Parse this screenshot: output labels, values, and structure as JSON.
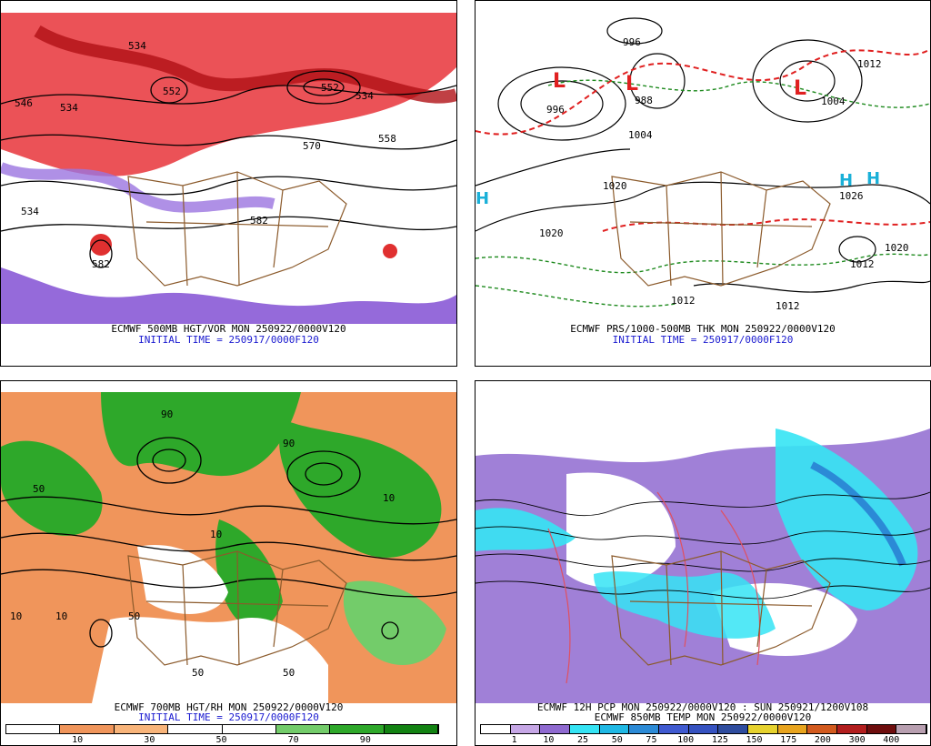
{
  "panels": {
    "p1": {
      "line1": "ECMWF 500MB HGT/VOR MON 250922/0000V120",
      "line2": "INITIAL TIME = 250917/0000F120",
      "labels": [
        "534",
        "546",
        "534",
        "552",
        "534",
        "552",
        "570",
        "582",
        "582",
        "534",
        "558"
      ]
    },
    "p2": {
      "line1": "ECMWF PRS/1000-500MB THK MON 250922/0000V120",
      "line2": "INITIAL TIME = 250917/0000F120",
      "labels": [
        "996",
        "996",
        "988",
        "1004",
        "1004",
        "1012",
        "1020",
        "1026",
        "1020",
        "1012",
        "1012",
        "1020",
        "1012"
      ]
    },
    "p3": {
      "line1": "ECMWF 700MB HGT/RH MON 250922/0000V120",
      "line2": "INITIAL TIME = 250917/0000F120",
      "labels": [
        "10",
        "50",
        "10",
        "50",
        "10",
        "50",
        "90",
        "10",
        "90",
        "50"
      ]
    },
    "p4": {
      "line1": "ECMWF 12H PCP MON 250922/0000V120 : SUN 250921/1200V108",
      "line2": "ECMWF 850MB TEMP MON 250922/0000V120"
    }
  },
  "colorbar_rh": {
    "colors": [
      "#ffffff",
      "#f0955b",
      "#f8b47a",
      "#ffffff",
      "#ffffff",
      "#73cc6a",
      "#2ea82a",
      "#128212"
    ],
    "ticks": [
      "10",
      "30",
      "50",
      "70",
      "90"
    ]
  },
  "colorbar_pcp": {
    "colors": [
      "#ffffff",
      "#c6a7e6",
      "#8f6ad0",
      "#35e4f4",
      "#1fb8e4",
      "#2b8ad6",
      "#3f5ad0",
      "#3552c0",
      "#2e4c9e",
      "#e6d22e",
      "#e8a41e",
      "#d25a1e",
      "#b21e1e",
      "#6e0e0e",
      "#b89fb0"
    ],
    "ticks": [
      "1",
      "10",
      "25",
      "50",
      "75",
      "100",
      "125",
      "150",
      "175",
      "200",
      "300",
      "400"
    ]
  }
}
